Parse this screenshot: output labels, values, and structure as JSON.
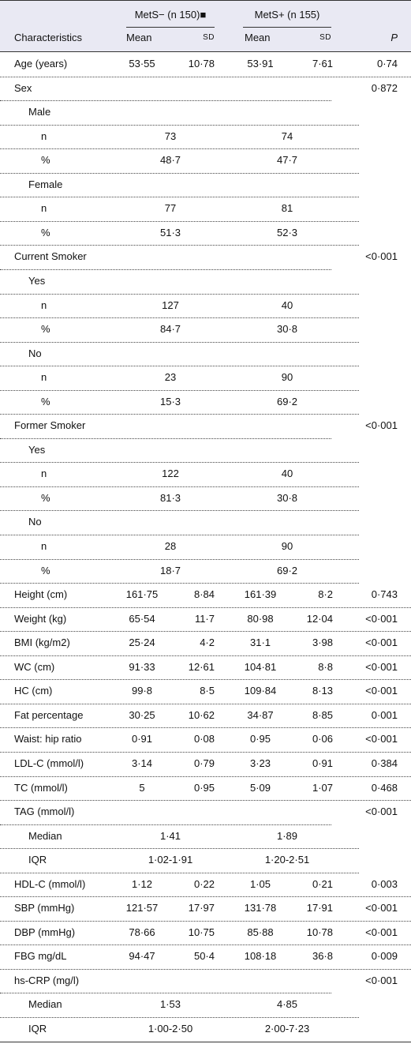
{
  "table": {
    "header": {
      "characteristics": "Characteristics",
      "neg_group": "MetS− (n 150)■",
      "pos_group": "MetS+ (n 155)",
      "neg_mean": "Mean",
      "neg_sd": "SD",
      "pos_mean": "Mean",
      "pos_sd": "SD",
      "p": "P"
    },
    "rows": [
      {
        "label": "Age (years)",
        "neg_mean": "53·55",
        "neg_sd": "10·78",
        "pos_mean": "53·91",
        "pos_sd": "7·61",
        "p": "0·74"
      },
      {
        "label": "Sex",
        "p": "0·872",
        "groups": [
          {
            "label": "Male",
            "rows": [
              {
                "label": "n",
                "neg": "73",
                "pos": "74"
              },
              {
                "label": "%",
                "neg": "48·7",
                "pos": "47·7"
              }
            ]
          },
          {
            "label": "Female",
            "rows": [
              {
                "label": "n",
                "neg": "77",
                "pos": "81"
              },
              {
                "label": "%",
                "neg": "51·3",
                "pos": "52·3"
              }
            ]
          }
        ]
      },
      {
        "label": "Current Smoker",
        "p": "<0·001",
        "groups": [
          {
            "label": "Yes",
            "rows": [
              {
                "label": "n",
                "neg": "127",
                "pos": "40"
              },
              {
                "label": "%",
                "neg": "84·7",
                "pos": "30·8"
              }
            ]
          },
          {
            "label": "No",
            "rows": [
              {
                "label": "n",
                "neg": "23",
                "pos": "90"
              },
              {
                "label": "%",
                "neg": "15·3",
                "pos": "69·2"
              }
            ]
          }
        ]
      },
      {
        "label": "Former Smoker",
        "p": "<0·001",
        "groups": [
          {
            "label": "Yes",
            "rows": [
              {
                "label": "n",
                "neg": "122",
                "pos": "40"
              },
              {
                "label": "%",
                "neg": "81·3",
                "pos": "30·8"
              }
            ]
          },
          {
            "label": "No",
            "rows": [
              {
                "label": "n",
                "neg": "28",
                "pos": "90"
              },
              {
                "label": "%",
                "neg": "18·7",
                "pos": "69·2"
              }
            ]
          }
        ]
      },
      {
        "label": "Height (cm)",
        "neg_mean": "161·75",
        "neg_sd": "8·84",
        "pos_mean": "161·39",
        "pos_sd": "8·2",
        "p": "0·743"
      },
      {
        "label": "Weight (kg)",
        "neg_mean": "65·54",
        "neg_sd": "11·7",
        "pos_mean": "80·98",
        "pos_sd": "12·04",
        "p": "<0·001"
      },
      {
        "label": "BMI (kg/m2)",
        "neg_mean": "25·24",
        "neg_sd": "4·2",
        "pos_mean": "31·1",
        "pos_sd": "3·98",
        "p": "<0·001"
      },
      {
        "label": "WC (cm)",
        "neg_mean": "91·33",
        "neg_sd": "12·61",
        "pos_mean": "104·81",
        "pos_sd": "8·8",
        "p": "<0·001"
      },
      {
        "label": "HC (cm)",
        "neg_mean": "99·8",
        "neg_sd": "8·5",
        "pos_mean": "109·84",
        "pos_sd": "8·13",
        "p": "<0·001"
      },
      {
        "label": "Fat percentage",
        "neg_mean": "30·25",
        "neg_sd": "10·62",
        "pos_mean": "34·87",
        "pos_sd": "8·85",
        "p": "0·001"
      },
      {
        "label": "Waist: hip ratio",
        "neg_mean": "0·91",
        "neg_sd": "0·08",
        "pos_mean": "0·95",
        "pos_sd": "0·06",
        "p": "<0·001"
      },
      {
        "label": "LDL-C (mmol/l)",
        "neg_mean": "3·14",
        "neg_sd": "0·79",
        "pos_mean": "3·23",
        "pos_sd": "0·91",
        "p": "0·384"
      },
      {
        "label": "TC (mmol/l)",
        "neg_mean": "5",
        "neg_sd": "0·95",
        "pos_mean": "5·09",
        "pos_sd": "1·07",
        "p": "0·468"
      },
      {
        "label": "TAG (mmol/l)",
        "p": "<0·001",
        "rows": [
          {
            "label": "Median",
            "neg": "1·41",
            "pos": "1·89"
          },
          {
            "label": "IQR",
            "neg": "1·02-1·91",
            "pos": "1·20-2·51"
          }
        ]
      },
      {
        "label": "HDL-C (mmol/l)",
        "neg_mean": "1·12",
        "neg_sd": "0·22",
        "pos_mean": "1·05",
        "pos_sd": "0·21",
        "p": "0·003"
      },
      {
        "label": "SBP (mmHg)",
        "neg_mean": "121·57",
        "neg_sd": "17·97",
        "pos_mean": "131·78",
        "pos_sd": "17·91",
        "p": "<0·001"
      },
      {
        "label": "DBP (mmHg)",
        "neg_mean": "78·66",
        "neg_sd": "10·75",
        "pos_mean": "85·88",
        "pos_sd": "10·78",
        "p": "<0·001"
      },
      {
        "label": "FBG mg/dL",
        "neg_mean": "94·47",
        "neg_sd": "50·4",
        "pos_mean": "108·18",
        "pos_sd": "36·8",
        "p": "0·009"
      },
      {
        "label": "hs-CRP (mg/l)",
        "p": "<0·001",
        "rows": [
          {
            "label": "Median",
            "neg": "1·53",
            "pos": "4·85"
          },
          {
            "label": "IQR",
            "neg": "1·00-2·50",
            "pos": "2·00-7·23"
          }
        ]
      }
    ]
  }
}
